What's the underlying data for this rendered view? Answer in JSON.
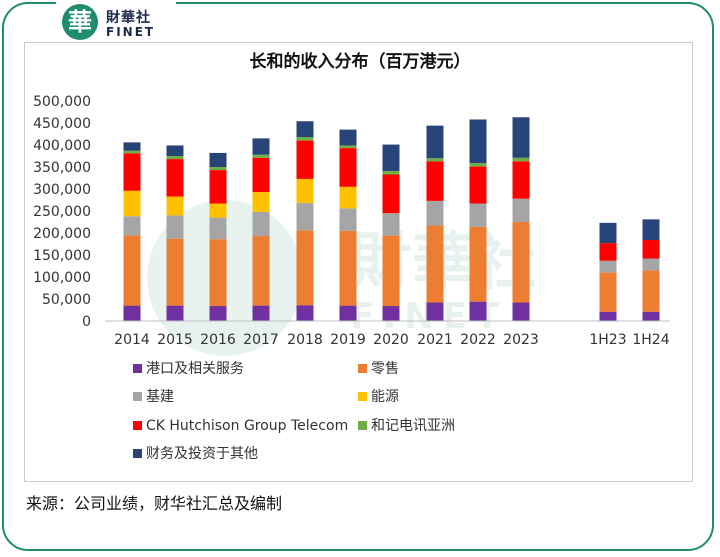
{
  "brand": {
    "logo_char": "華",
    "name_cn": "財華社",
    "name_en": "FINET",
    "accent": "#1f8c6e"
  },
  "source_note": "来源：公司业绩，财华社汇总及编制",
  "chart_data": {
    "type": "bar",
    "stacked": true,
    "title": "长和的收入分布（百万港元）",
    "categories": [
      "2014",
      "2015",
      "2016",
      "2017",
      "2018",
      "2019",
      "2020",
      "2021",
      "2022",
      "2023",
      "1H23",
      "1H24"
    ],
    "y_tick_labels": [
      "0",
      "50,000",
      "100,000",
      "150,000",
      "200,000",
      "250,000",
      "300,000",
      "350,000",
      "400,000",
      "450,000",
      "500,000"
    ],
    "ylim": [
      0,
      500000
    ],
    "grid": false,
    "legend_position": "bottom",
    "series": [
      {
        "name": "港口及相关服务",
        "color": "#7030a0",
        "values": [
          35000,
          35000,
          34000,
          35000,
          36000,
          35000,
          34000,
          42000,
          44000,
          42000,
          21000,
          21000
        ]
      },
      {
        "name": "零售",
        "color": "#ed7d31",
        "values": [
          160000,
          152000,
          152000,
          158000,
          170000,
          170000,
          160000,
          175000,
          170000,
          183000,
          89000,
          94000
        ]
      },
      {
        "name": "基建",
        "color": "#a5a5a5",
        "values": [
          43000,
          53000,
          49000,
          55000,
          62000,
          51000,
          51000,
          56000,
          53000,
          53000,
          27000,
          27000
        ]
      },
      {
        "name": "能源",
        "color": "#ffc000",
        "values": [
          58000,
          43000,
          32000,
          45000,
          55000,
          49000,
          0,
          0,
          0,
          0,
          0,
          0
        ]
      },
      {
        "name": "CK Hutchison Group Telecom",
        "color": "#ff0000",
        "values": [
          85000,
          85000,
          76000,
          78000,
          87000,
          88000,
          88000,
          90000,
          84000,
          85000,
          40000,
          42000
        ]
      },
      {
        "name": "和记电讯亚洲",
        "color": "#70ad47",
        "values": [
          6000,
          7000,
          7000,
          7000,
          8000,
          6000,
          8000,
          7000,
          8000,
          8000,
          0,
          0
        ]
      },
      {
        "name": "财务及投资于其他",
        "color": "#264478",
        "values": [
          19000,
          24000,
          32000,
          37000,
          36000,
          36000,
          60000,
          74000,
          99000,
          92000,
          46000,
          47000
        ]
      }
    ]
  }
}
